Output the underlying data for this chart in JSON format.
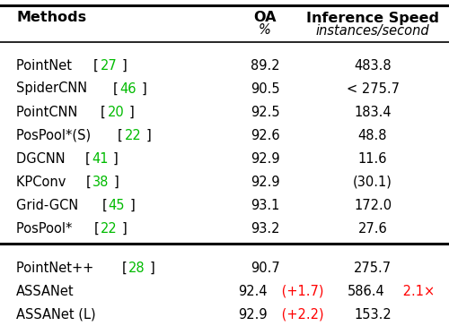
{
  "title_row": [
    "Methods",
    "OA",
    "Inference Speed"
  ],
  "subtitle_row": [
    "",
    "%",
    "instances/second"
  ],
  "rows_group1": [
    {
      "method": "PointNet",
      "ref": "27",
      "oa": "89.2",
      "speed": "483.8"
    },
    {
      "method": "SpiderCNN",
      "ref": "46",
      "oa": "90.5",
      "speed": "< 275.7"
    },
    {
      "method": "PointCNN",
      "ref": "20",
      "oa": "92.5",
      "speed": "183.4"
    },
    {
      "method": "PosPool*(S)",
      "ref": "22",
      "oa": "92.6",
      "speed": "48.8"
    },
    {
      "method": "DGCNN",
      "ref": "41",
      "oa": "92.9",
      "speed": "11.6"
    },
    {
      "method": "KPConv",
      "ref": "38",
      "oa": "92.9",
      "speed": "(30.1)"
    },
    {
      "method": "Grid-GCN",
      "ref": "45",
      "oa": "93.1",
      "speed": "172.0"
    },
    {
      "method": "PosPool*",
      "ref": "22",
      "oa": "93.2",
      "speed": "27.6"
    }
  ],
  "rows_group2": [
    {
      "method": "PointNet++",
      "ref": "28",
      "oa": "90.7",
      "speed": "275.7",
      "oa_highlight": null,
      "speed_highlight": null
    },
    {
      "method": "ASSANet",
      "ref": null,
      "oa": "92.4",
      "speed": "586.4",
      "oa_highlight": "(+1.7)",
      "speed_highlight": "2.1×"
    },
    {
      "method": "ASSANet (L)",
      "ref": null,
      "oa": "92.9",
      "speed": "153.2",
      "oa_highlight": "(+2.2)",
      "speed_highlight": null
    }
  ],
  "ref_color": "#00bb00",
  "highlight_color": "#ff0000",
  "bg_color": "#ffffff",
  "text_color": "#000000",
  "font_size": 10.5,
  "bold_font_size": 11.5
}
